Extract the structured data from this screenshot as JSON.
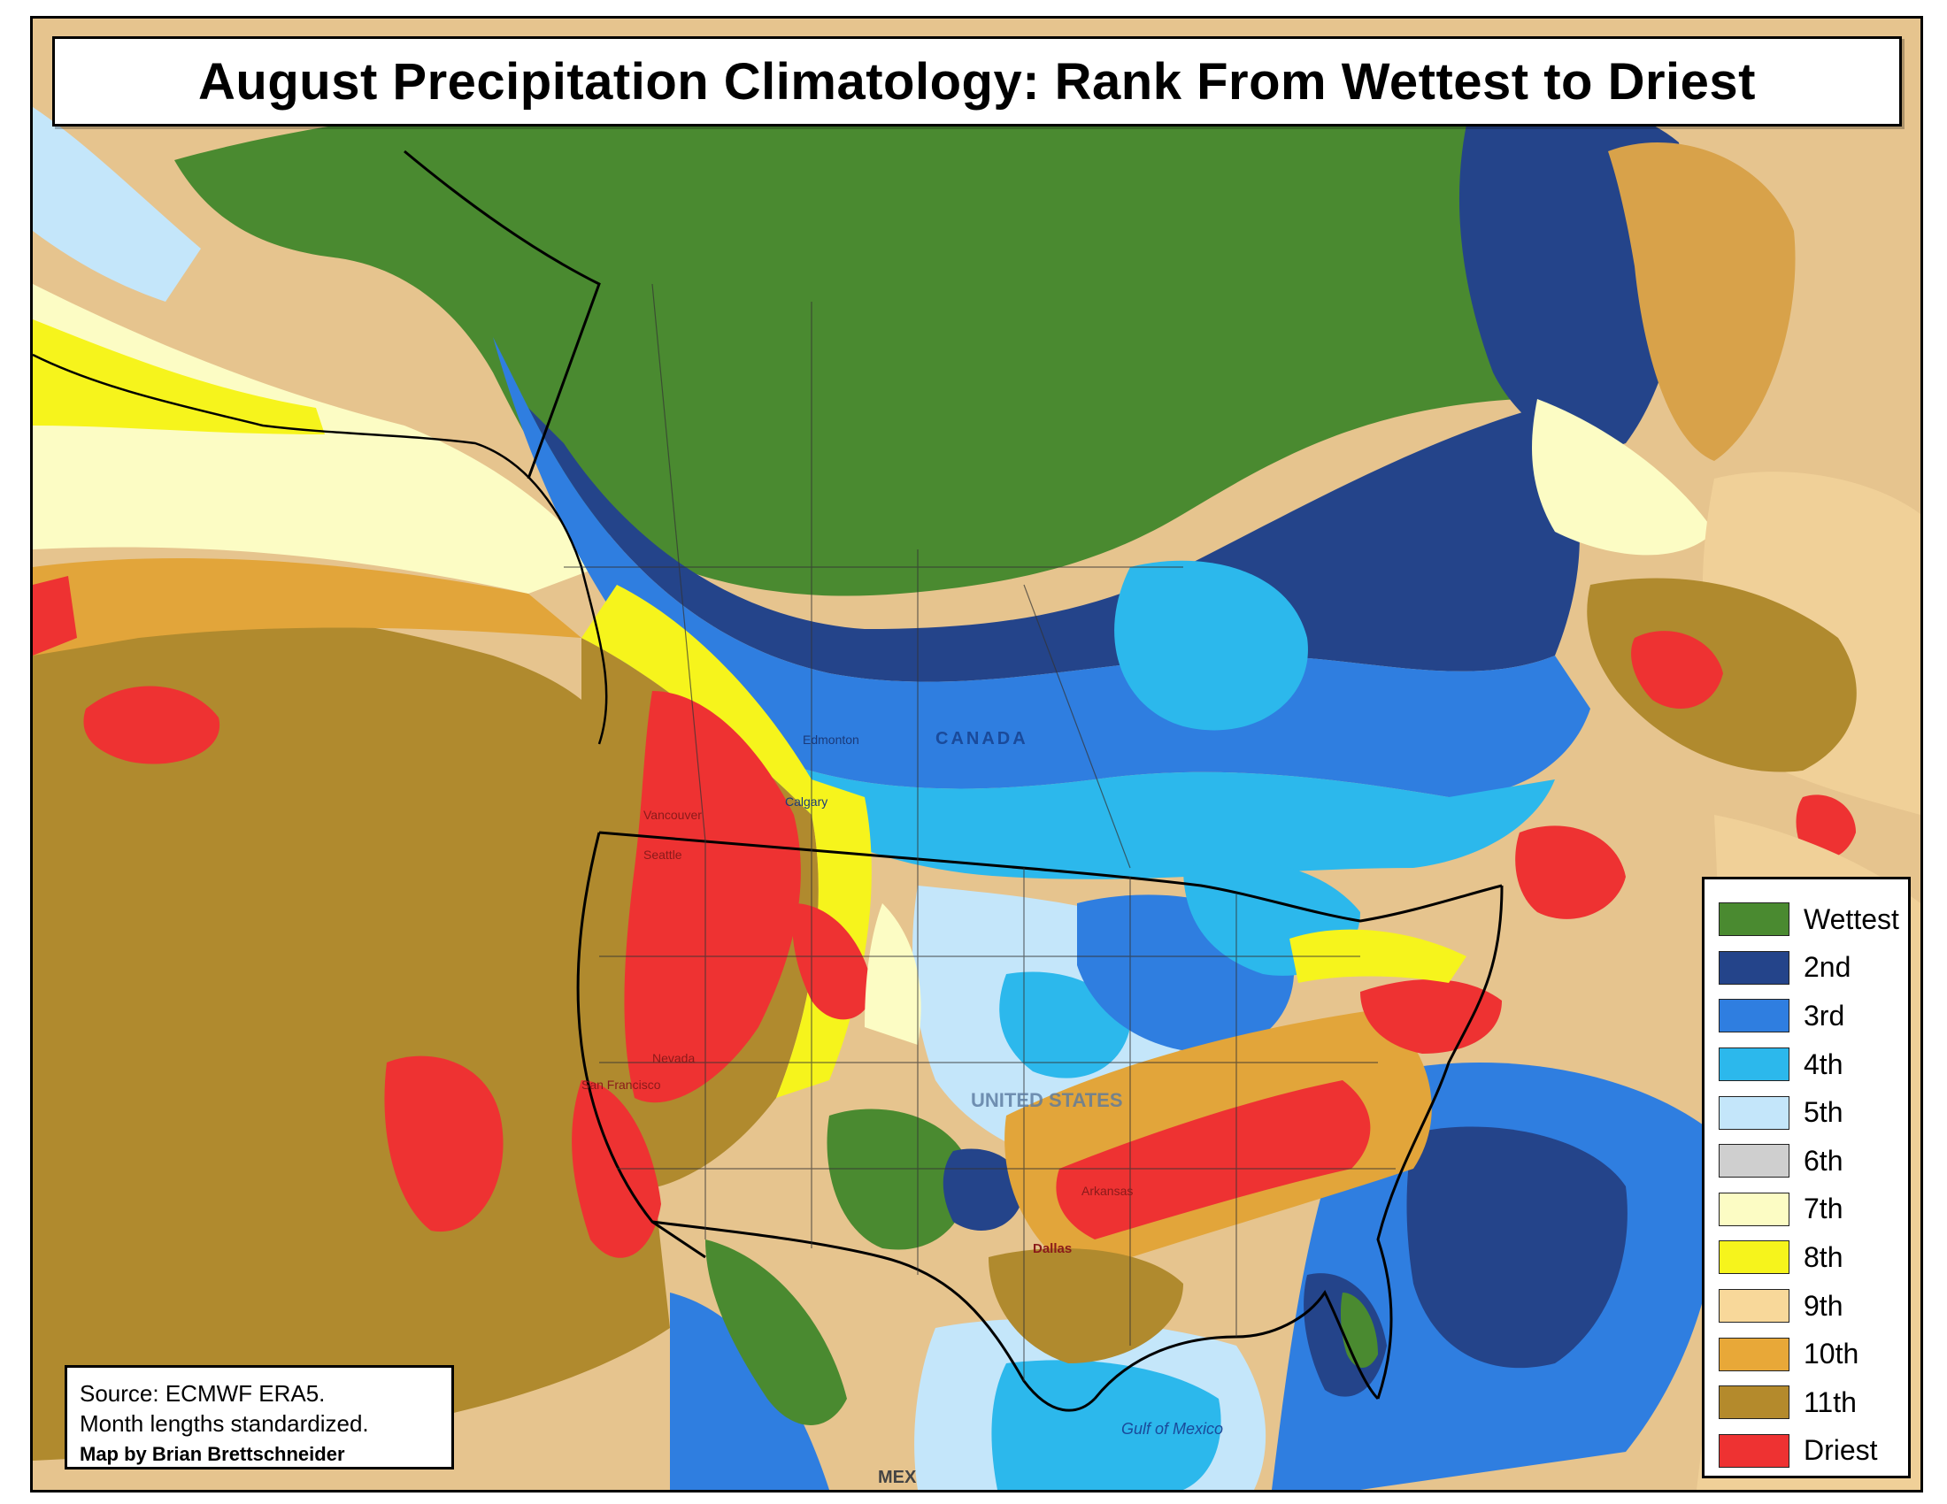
{
  "title": "August Precipitation Climatology: Rank From Wettest to Driest",
  "legend": [
    {
      "label": "Wettest",
      "color": "#4a8a30"
    },
    {
      "label": "2nd",
      "color": "#24448a"
    },
    {
      "label": "3rd",
      "color": "#2f7ee0"
    },
    {
      "label": "4th",
      "color": "#2cb8ec"
    },
    {
      "label": "5th",
      "color": "#c4e6fa"
    },
    {
      "label": "6th",
      "color": "#cfcfcf"
    },
    {
      "label": "7th",
      "color": "#fcfcc4"
    },
    {
      "label": "8th",
      "color": "#f6f41c"
    },
    {
      "label": "9th",
      "color": "#f8d89a"
    },
    {
      "label": "10th",
      "color": "#e8a838"
    },
    {
      "label": "11th",
      "color": "#b48a2c"
    },
    {
      "label": "Driest",
      "color": "#ee3232"
    }
  ],
  "source": {
    "line1": "Source: ECMWF ERA5.",
    "line2": "Month lengths standardized.",
    "credit": "Map by Brian Brettschneider"
  },
  "places": {
    "canada": "CANADA",
    "united_states": "UNITED STATES",
    "mexico": "MEX",
    "gulf_of_mexico": "Gulf of Mexico",
    "edmonton": "Edmonton",
    "vancouver": "Vancouver",
    "seattle": "Seattle",
    "dallas": "Dallas",
    "san_francisco": "San Francisco",
    "nevada": "Nevada",
    "arkansas": "Arkansas",
    "calgary": "Calgary"
  }
}
